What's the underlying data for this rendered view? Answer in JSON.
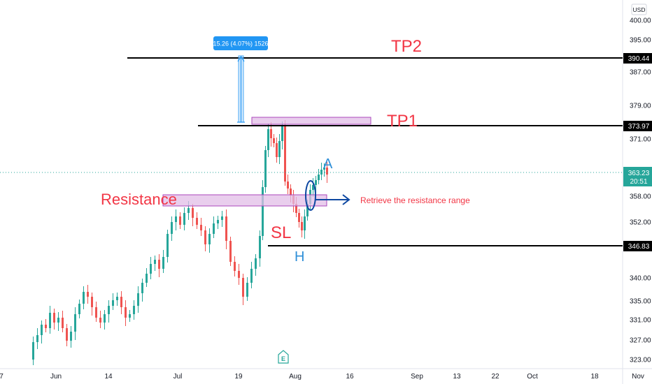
{
  "chart_data": {
    "type": "candlestick",
    "currency": "USD",
    "y_ticks": [
      400.0,
      395.0,
      387.0,
      379.0,
      371.0,
      358.0,
      352.0,
      340.0,
      335.0,
      331.0,
      327.0,
      323.0
    ],
    "y_tick_labels": [
      "400.00",
      "395.00",
      "387.00",
      "379.00",
      "371.00",
      "358.00",
      "352.00",
      "340.00",
      "335.00",
      "331.00",
      "327.00",
      "323.00"
    ],
    "x_tick_labels": [
      "7",
      "Jun",
      "14",
      "Jul",
      "19",
      "Aug",
      "16",
      "Sep",
      "13",
      "22",
      "Oct",
      "18",
      "Nov"
    ],
    "last_price": {
      "value": 363.23,
      "label": "363.23",
      "countdown": "20:51",
      "color": "#26a69a"
    },
    "levels": [
      {
        "name": "TP2",
        "value": 390.44,
        "label": "390.44"
      },
      {
        "name": "TP1",
        "value": 373.97,
        "label": "373.97"
      },
      {
        "name": "SL",
        "value": 346.83,
        "label": "346.83"
      }
    ],
    "measure": {
      "label": "15.26 (4.07%) 1526",
      "color": "#2196f3"
    },
    "annotations": {
      "tp2": "TP2",
      "tp1": "TP1",
      "resistance": "Resistance",
      "sl": "SL",
      "h": "H",
      "a": "A",
      "retrieve": "Retrieve the resistance range"
    },
    "earnings_marker": "E",
    "colors": {
      "up": "#26a69a",
      "down": "#ef5350",
      "zone_fill": "#e1bee7",
      "zone_stroke": "#ab47bc",
      "annotation_red": "#f23645",
      "annotation_blue": "#2f8fd8",
      "arrow_blue": "#0d47a1"
    }
  }
}
